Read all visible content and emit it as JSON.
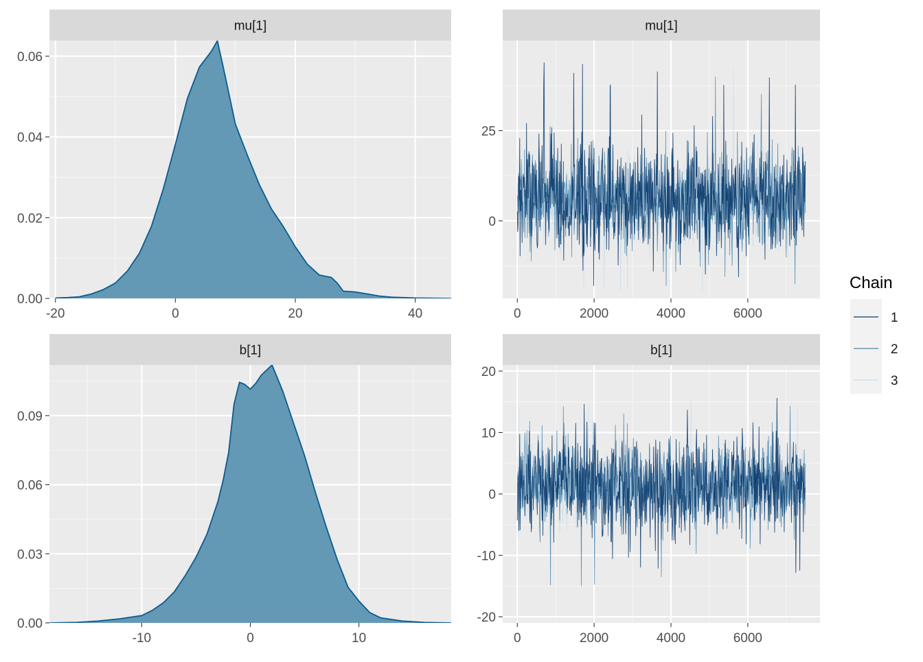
{
  "legend": {
    "title": "Chain",
    "entries": [
      {
        "label": "1",
        "color": "#0b3a6b"
      },
      {
        "label": "2",
        "color": "#4a86ad"
      },
      {
        "label": "3",
        "color": "#c9dbe9"
      }
    ]
  },
  "colors": {
    "panel_bg": "#ebebeb",
    "strip_bg": "#d9d9d9",
    "grid_major": "#ffffff",
    "density_fill": "#6399b5",
    "density_line": "#0b5a8f",
    "trace_band": "#d1e2ee"
  },
  "chart_data": [
    {
      "type": "area",
      "strip": "mu[1]",
      "xlim": [
        -21,
        46
      ],
      "ylim": [
        0,
        0.0639
      ],
      "x_ticks": [
        -20,
        0,
        20,
        40
      ],
      "y_ticks": [
        0.0,
        0.02,
        0.04,
        0.06
      ],
      "y_tick_labels": [
        "0.00",
        "0.02",
        "0.04",
        "0.06"
      ],
      "x": [
        -20,
        -18,
        -16,
        -14,
        -12,
        -10,
        -8,
        -6,
        -4,
        -2,
        0,
        2,
        4,
        6,
        7,
        8,
        10,
        12,
        14,
        16,
        18,
        20,
        22,
        24,
        26,
        27,
        28,
        30,
        32,
        34,
        36,
        40,
        46
      ],
      "y": [
        0.0001,
        0.0002,
        0.0004,
        0.0011,
        0.0022,
        0.0038,
        0.0068,
        0.0112,
        0.0178,
        0.0272,
        0.0382,
        0.0495,
        0.0573,
        0.0612,
        0.0638,
        0.0572,
        0.0432,
        0.0355,
        0.0282,
        0.0222,
        0.0178,
        0.0128,
        0.0085,
        0.0058,
        0.0052,
        0.0038,
        0.0018,
        0.0016,
        0.0011,
        0.0006,
        0.0003,
        0.0001,
        0.0
      ]
    },
    {
      "type": "line",
      "strip": "mu[1]",
      "xlim": [
        -380,
        7880
      ],
      "ylim": [
        -21.5,
        50
      ],
      "x_ticks": [
        0,
        2000,
        4000,
        6000
      ],
      "y_ticks": [
        0,
        25
      ],
      "y_tick_labels": [
        "0",
        "25"
      ],
      "iterations": 7500,
      "series": [
        {
          "name": "1",
          "center": 6,
          "spread": 8,
          "min": -21,
          "max": 44
        },
        {
          "name": "2",
          "center": 6,
          "spread": 7,
          "min": -18,
          "max": 40
        },
        {
          "name": "3",
          "center": 6,
          "spread": 6,
          "min": -20,
          "max": 46
        }
      ]
    },
    {
      "type": "area",
      "strip": "b[1]",
      "xlim": [
        -18.5,
        18.5
      ],
      "ylim": [
        0,
        0.112
      ],
      "x_ticks": [
        -10,
        0,
        10
      ],
      "y_ticks": [
        0.0,
        0.03,
        0.06,
        0.09
      ],
      "y_tick_labels": [
        "0.00",
        "0.03",
        "0.06",
        "0.09"
      ],
      "x": [
        -18.5,
        -16,
        -14,
        -12,
        -10,
        -9,
        -8,
        -7,
        -6,
        -5,
        -4,
        -3,
        -2.5,
        -2,
        -1.5,
        -1,
        -0.5,
        0,
        0.5,
        1,
        2,
        3,
        4,
        5,
        6,
        7,
        8,
        9,
        10,
        11,
        12,
        14,
        16,
        18.5
      ],
      "y": [
        0.0,
        0.0002,
        0.0008,
        0.0018,
        0.0032,
        0.0055,
        0.0088,
        0.0135,
        0.0205,
        0.0285,
        0.0385,
        0.0525,
        0.062,
        0.074,
        0.095,
        0.1045,
        0.1035,
        0.1015,
        0.104,
        0.1075,
        0.112,
        0.1005,
        0.0865,
        0.0725,
        0.0565,
        0.0415,
        0.0275,
        0.0155,
        0.0095,
        0.0045,
        0.0022,
        0.0008,
        0.0002,
        0.0
      ]
    },
    {
      "type": "line",
      "strip": "b[1]",
      "xlim": [
        -380,
        7880
      ],
      "ylim": [
        -21,
        21
      ],
      "x_ticks": [
        0,
        2000,
        4000,
        6000
      ],
      "y_ticks": [
        -20,
        -10,
        0,
        10,
        20
      ],
      "y_tick_labels": [
        "-20",
        "-10",
        "0",
        "10",
        "20"
      ],
      "iterations": 7500,
      "series": [
        {
          "name": "1",
          "center": 1.5,
          "spread": 4.2,
          "min": -13,
          "max": 17
        },
        {
          "name": "2",
          "center": 1.5,
          "spread": 3.8,
          "min": -15.5,
          "max": 15
        },
        {
          "name": "3",
          "center": 1.5,
          "spread": 3.2,
          "min": -18.5,
          "max": 15.5
        }
      ]
    }
  ]
}
